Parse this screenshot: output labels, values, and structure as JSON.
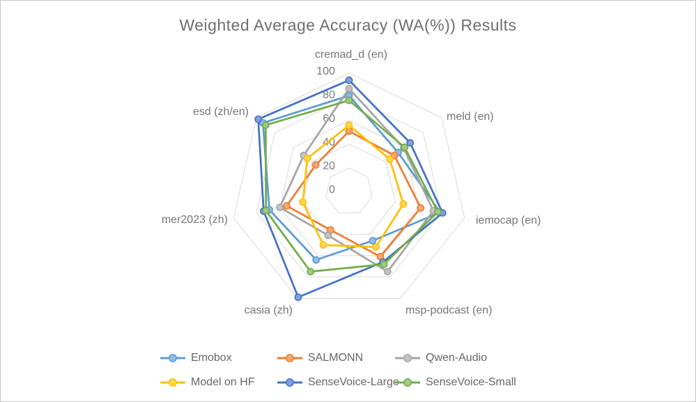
{
  "chart_data": {
    "type": "radar",
    "title": "Weighted Average Accuracy (WA(%)) Results",
    "categories": [
      "cremad_d (en)",
      "meld (en)",
      "iemocap (en)",
      "msp-podcast (en)",
      "casia (zh)",
      "mer2023 (zh)",
      "esd  (zh/en)"
    ],
    "radial_axis": {
      "min": 0,
      "max": 100,
      "tick_interval": 20,
      "ticks": [
        0,
        20,
        40,
        60,
        80,
        100
      ]
    },
    "grid": true,
    "legend_position": "bottom",
    "series": [
      {
        "name": "Emobox",
        "color": "#5B9BD5",
        "values": [
          81,
          53,
          79,
          46,
          64,
          69,
          93
        ]
      },
      {
        "name": "SALMONN",
        "color": "#ED7D31",
        "values": [
          51,
          49,
          62,
          61,
          36,
          54,
          36
        ]
      },
      {
        "name": "Qwen-Audio",
        "color": "#A5A5A5",
        "values": [
          87,
          59,
          73,
          75,
          41,
          60,
          49
        ]
      },
      {
        "name": "Model on HF",
        "color": "#FFC000",
        "values": [
          56,
          44,
          47,
          52,
          50,
          40,
          45
        ]
      },
      {
        "name": "SenseVoice-Large",
        "color": "#4472C4",
        "values": [
          94,
          66,
          81,
          66,
          99,
          74,
          98
        ]
      },
      {
        "name": "SenseVoice-Small",
        "color": "#70AD47",
        "values": [
          77,
          60,
          77,
          68,
          75,
          72,
          90
        ]
      }
    ],
    "gridline_color": "#D9D9D9"
  }
}
